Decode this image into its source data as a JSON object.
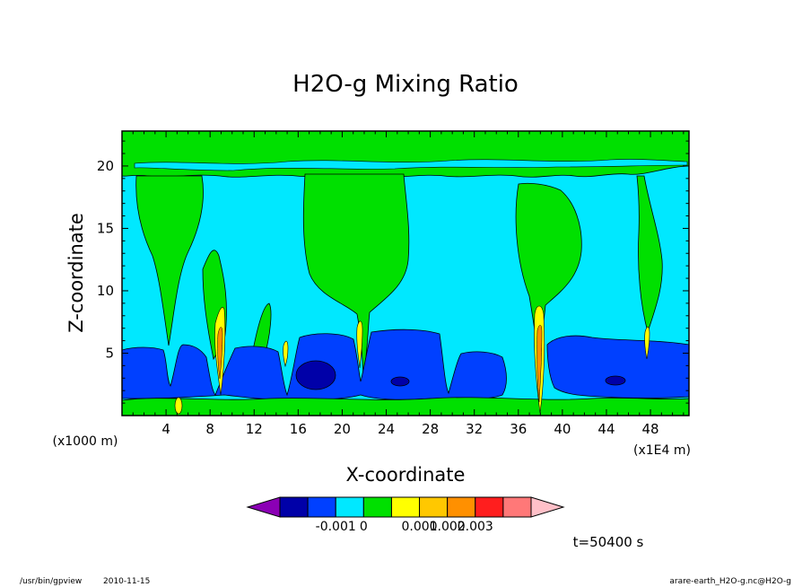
{
  "chart_data": {
    "type": "heatmap",
    "title": "H2O-g Mixing Ratio",
    "xlabel": "X-coordinate",
    "ylabel": "Z-coordinate",
    "x_scale_note": "(x1E4 m)",
    "y_scale_note": "(x1000 m)",
    "xlim": [
      0,
      51.5
    ],
    "ylim": [
      0,
      22.8
    ],
    "x_ticks": [
      4,
      8,
      12,
      16,
      20,
      24,
      28,
      32,
      36,
      40,
      44,
      48
    ],
    "y_ticks": [
      5,
      10,
      15,
      20
    ],
    "x_tick_labels": [
      "4",
      "8",
      "12",
      "16",
      "20",
      "24",
      "28",
      "32",
      "36",
      "40",
      "44",
      "48"
    ],
    "y_tick_labels": [
      "5",
      "10",
      "15",
      "20"
    ],
    "colorbar": {
      "colors": [
        "#8b00b5",
        "#0000a8",
        "#0040ff",
        "#00e8ff",
        "#00e000",
        "#ffff00",
        "#ffc800",
        "#ff9000",
        "#ff1e1e",
        "#ff7878",
        "#ffc0c8"
      ],
      "labels": [
        "-0.001",
        "0",
        "0.001",
        "0.002",
        "0.003"
      ],
      "label_positions": [
        2,
        3,
        5,
        6,
        7
      ]
    },
    "regions": [
      {
        "level": "light-blue",
        "color": "#00e8ff",
        "x": [
          0,
          51.5
        ],
        "z": [
          0,
          22.8
        ]
      },
      {
        "level": "green",
        "color": "#00e000",
        "x": [
          0,
          51.5
        ],
        "z": [
          17.5,
          22.8
        ]
      },
      {
        "level": "green",
        "color": "#00e000",
        "x": [
          17,
          25
        ],
        "z": [
          11,
          18
        ]
      },
      {
        "level": "green",
        "color": "#00e000",
        "x": [
          35,
          41
        ],
        "z": [
          9,
          18
        ]
      },
      {
        "level": "green",
        "color": "#00e000",
        "x": [
          1.5,
          6
        ],
        "z": [
          4.5,
          17
        ]
      },
      {
        "level": "blue",
        "color": "#0040ff",
        "x": [
          0,
          51.5
        ],
        "z": [
          1.2,
          6
        ]
      },
      {
        "level": "dark-blue",
        "color": "#0000a8",
        "x": [
          14.5,
          18.5
        ],
        "z": [
          2,
          4.5
        ]
      },
      {
        "level": "dark-blue",
        "color": "#0000a8",
        "x": [
          22,
          25
        ],
        "z": [
          2.2,
          3.5
        ]
      },
      {
        "level": "dark-blue",
        "color": "#0000a8",
        "x": [
          43.5,
          45.5
        ],
        "z": [
          2.2,
          3.4
        ]
      },
      {
        "level": "green",
        "color": "#00e000",
        "x": [
          0,
          51.5
        ],
        "z": [
          0,
          1.2
        ]
      },
      {
        "level": "yellow-plume",
        "color": "#ffff00",
        "x": [
          8.3,
          9.2
        ],
        "z": [
          2,
          9
        ]
      },
      {
        "level": "yellow-plume",
        "color": "#ffff00",
        "x": [
          36.8,
          37.8
        ],
        "z": [
          1,
          9
        ]
      },
      {
        "level": "yellow-plume",
        "color": "#ffff00",
        "x": [
          20.5,
          21.2
        ],
        "z": [
          3,
          7
        ]
      },
      {
        "level": "yellow-plume",
        "color": "#ffff00",
        "x": [
          46.7,
          47.3
        ],
        "z": [
          5,
          7
        ]
      }
    ]
  },
  "time_label": "t=50400 s",
  "footer": {
    "left_program": "/usr/bin/gpview",
    "left_date": "2010-11-15",
    "right_source": "arare-earth_H2O-g.nc@H2O-g"
  }
}
